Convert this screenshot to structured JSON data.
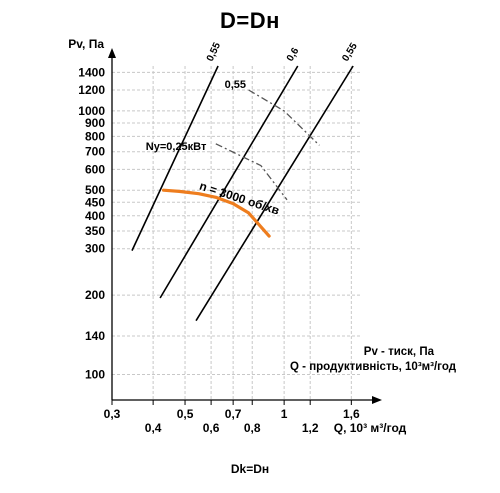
{
  "chart_data": {
    "type": "line",
    "title": "D=Dн",
    "footer": "Dk=Dн",
    "xlabel": "Q, 10³ м³/год",
    "ylabel": "Pv, Па",
    "x_scale": "log",
    "y_scale": "log",
    "xlim": [
      0.3,
      1.7
    ],
    "ylim": [
      80,
      1480
    ],
    "x_ticks": [
      {
        "value": 0.3,
        "label": "0,3",
        "row": 1
      },
      {
        "value": 0.4,
        "label": "0,4",
        "row": 2
      },
      {
        "value": 0.5,
        "label": "0,5",
        "row": 1
      },
      {
        "value": 0.6,
        "label": "0,6",
        "row": 2
      },
      {
        "value": 0.7,
        "label": "0,7",
        "row": 1
      },
      {
        "value": 0.8,
        "label": "0,8",
        "row": 2
      },
      {
        "value": 1.0,
        "label": "1",
        "row": 1
      },
      {
        "value": 1.2,
        "label": "1,2",
        "row": 2
      },
      {
        "value": 1.6,
        "label": "1,6",
        "row": 1
      }
    ],
    "y_ticks": [
      {
        "value": 100,
        "label": "100"
      },
      {
        "value": 140,
        "label": "140"
      },
      {
        "value": 200,
        "label": "200"
      },
      {
        "value": 300,
        "label": "300"
      },
      {
        "value": 350,
        "label": "350"
      },
      {
        "value": 400,
        "label": "400"
      },
      {
        "value": 450,
        "label": "450"
      },
      {
        "value": 500,
        "label": "500"
      },
      {
        "value": 600,
        "label": "600"
      },
      {
        "value": 700,
        "label": "700"
      },
      {
        "value": 800,
        "label": "800"
      },
      {
        "value": 900,
        "label": "900"
      },
      {
        "value": 1000,
        "label": "1000"
      },
      {
        "value": 1200,
        "label": "1200"
      },
      {
        "value": 1400,
        "label": "1400"
      }
    ],
    "grid": true,
    "efficiency_lines": [
      {
        "label": "0,55",
        "x": [
          0.345,
          0.63
        ],
        "y": [
          295,
          1480
        ]
      },
      {
        "label": "0,6",
        "x": [
          0.42,
          1.1
        ],
        "y": [
          195,
          1480
        ]
      },
      {
        "label": "0,55",
        "x": [
          0.54,
          1.62
        ],
        "y": [
          160,
          1480
        ]
      }
    ],
    "power_lines": [
      {
        "label": "0,55",
        "x": [
          0.78,
          1.0,
          1.28
        ],
        "y": [
          1200,
          1000,
          740
        ]
      },
      {
        "label": "Ny=0,25кВт",
        "x": [
          0.62,
          0.85,
          1.02
        ],
        "y": [
          750,
          620,
          460
        ]
      }
    ],
    "fan_curve": {
      "label": "n = 3000 об/хв",
      "color": "#ee7d1e",
      "x": [
        0.43,
        0.48,
        0.55,
        0.62,
        0.7,
        0.78,
        0.9
      ],
      "y": [
        500,
        495,
        485,
        470,
        445,
        410,
        335
      ]
    },
    "notes": [
      "Pv - тиск, Па",
      "Q - продуктивність, 10³м³/год"
    ]
  }
}
